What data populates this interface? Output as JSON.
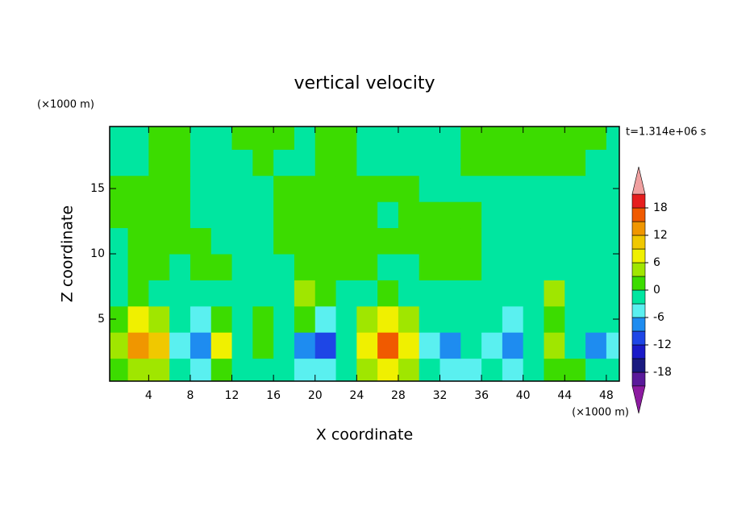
{
  "chart_data": {
    "type": "contour",
    "title": "vertical velocity",
    "xlabel": "X coordinate",
    "ylabel": "Z coordinate",
    "x_unit": "(×1000 m)",
    "y_unit": "(×1000 m)",
    "time_label": "t=1.314e+06 s",
    "xlim": [
      0.25,
      49.25
    ],
    "ylim": [
      0.25,
      19.75
    ],
    "xticks": [
      4,
      8,
      12,
      16,
      20,
      24,
      28,
      32,
      36,
      40,
      44,
      48
    ],
    "yticks": [
      5,
      10,
      15
    ],
    "x": [
      1,
      3,
      5,
      7,
      9,
      11,
      13,
      15,
      17,
      19,
      21,
      23,
      25,
      27,
      29,
      31,
      33,
      35,
      37,
      39,
      41,
      43,
      45,
      47,
      49
    ],
    "z": [
      1,
      3,
      5,
      7,
      9,
      11,
      13,
      15,
      17,
      19
    ],
    "values": [
      [
        1,
        5,
        5,
        -2,
        -4,
        2,
        -1,
        -3,
        -2,
        -4,
        -5,
        -3,
        3,
        7,
        4,
        -3,
        -4,
        -4,
        -3,
        -4,
        -3,
        2,
        0,
        -3,
        -2
      ],
      [
        3,
        12,
        10,
        -5,
        -9,
        6,
        -2,
        0,
        -3,
        -8,
        -10,
        -3,
        6,
        15,
        8,
        -4,
        -8,
        -3,
        -5,
        -9,
        -3,
        5,
        -2,
        -7,
        -4
      ],
      [
        2,
        6,
        5,
        -3,
        -4,
        2,
        -2,
        1,
        -3,
        2,
        -5,
        -2,
        3,
        8,
        4,
        -3,
        -3,
        -2,
        -3,
        -4,
        -2,
        2,
        -1,
        -3,
        -3
      ],
      [
        -1,
        1,
        -1,
        -2,
        -2,
        -1,
        -2,
        -1,
        -1,
        5,
        1,
        -1,
        -1,
        2,
        -1,
        -1,
        -2,
        -1,
        -2,
        -1,
        -1,
        3,
        -1,
        -2,
        -2
      ],
      [
        -1,
        1,
        1,
        -1,
        1,
        1,
        -1,
        -2,
        -1,
        2,
        1,
        1,
        1,
        -1,
        -1,
        1,
        1,
        1,
        -1,
        -1,
        -1,
        -1,
        -1,
        -1,
        -2
      ],
      [
        -1,
        1,
        1,
        1,
        1,
        -1,
        -1,
        -1,
        1,
        1,
        1,
        1,
        1,
        1,
        1,
        1,
        1,
        1,
        -1,
        -1,
        -1,
        -1,
        -1,
        -1,
        -1
      ],
      [
        1,
        1,
        1,
        1,
        -1,
        -1,
        -1,
        -1,
        1,
        1,
        1,
        1,
        1,
        -1,
        1,
        1,
        1,
        1,
        -1,
        -1,
        -1,
        -1,
        -1,
        -1,
        -1
      ],
      [
        1,
        1,
        1,
        1,
        -1,
        -1,
        -1,
        -1,
        1,
        1,
        1,
        1,
        1,
        1,
        1,
        -1,
        -1,
        -1,
        -1,
        -1,
        -1,
        -1,
        -1,
        -1,
        -1
      ],
      [
        -1,
        -1,
        1,
        1,
        -1,
        -1,
        -1,
        1,
        -1,
        -1,
        1,
        1,
        -1,
        -1,
        -1,
        -1,
        -1,
        1,
        1,
        1,
        1,
        1,
        1,
        -1,
        -1
      ],
      [
        -1,
        -1,
        1,
        1,
        -1,
        -1,
        1,
        1,
        1,
        -1,
        1,
        1,
        -1,
        -1,
        -1,
        -1,
        -1,
        1,
        1,
        1,
        1,
        1,
        1,
        1,
        -1
      ]
    ],
    "levels": [
      -21,
      -18,
      -15,
      -12,
      -9,
      -6,
      -3,
      0,
      3,
      6,
      9,
      12,
      15,
      18,
      21
    ],
    "colors": [
      "#5a1a9a",
      "#1a1a80",
      "#1a1ac8",
      "#1e46e6",
      "#1e8cf0",
      "#5af0f0",
      "#00e6a0",
      "#3cdc00",
      "#a0e600",
      "#f0f000",
      "#f0c800",
      "#f09600",
      "#f05a00",
      "#e61e1e"
    ],
    "under_color": "#8c1aa0",
    "over_color": "#f0a0a0",
    "cbar_ticks": [
      -18,
      -12,
      -6,
      0,
      6,
      12,
      18
    ]
  }
}
